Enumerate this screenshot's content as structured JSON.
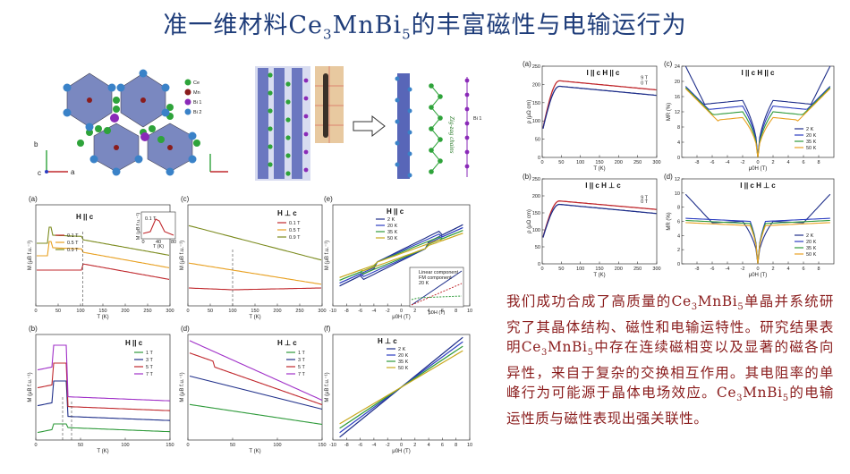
{
  "title": {
    "main": "准一维材料Ce",
    "sub1": "3",
    "mid": "MnBi",
    "sub2": "5",
    "tail": "的丰富磁性与电输运行为"
  },
  "structure": {
    "legend": [
      "Ce",
      "Mn",
      "Bi 1",
      "Bi 2"
    ],
    "axes": [
      "b",
      "c",
      "a"
    ],
    "chain_label": "Zig-zag chains",
    "chain_atom": "Bi 1"
  },
  "colors": {
    "red": "#c0282d",
    "orange": "#e8a020",
    "olive": "#7a8a1c",
    "green": "#2e9a3a",
    "navy": "#1f2f8a",
    "purple": "#a030c8",
    "blue": "#2a3cc0",
    "yellow": "#c8a81c"
  },
  "summary": {
    "p1": "我们成功合成了高质量的Ce",
    "s1": "3",
    "p2": "MnBi",
    "s2": "5",
    "p3": "单晶并系统研究了其晶体结构、磁性和电输运特性。研究结果表明Ce",
    "s3": "3",
    "p4": "MnBi",
    "s4": "5",
    "p5": "中存在连续磁相变以及显著的磁各向异性，来自于复杂的交换相互作用。其电阻率的单峰行为可能源于晶体电场效应。Ce",
    "s5": "3",
    "p6": "MnBi",
    "s6": "5",
    "p7": "的电输运性质与磁性表现出强关联性。"
  },
  "chart_data": [
    {
      "id": "a",
      "type": "line",
      "label": "(a)",
      "heading": "H || c",
      "xlabel": "T (K)",
      "ylabel": "M (μB f.u.⁻¹)",
      "xlim": [
        0,
        300
      ],
      "xticks": [
        0,
        50,
        100,
        150,
        200,
        250,
        300
      ],
      "series": [
        {
          "name": "0.1 T",
          "color": "red"
        },
        {
          "name": "0.5 T",
          "color": "orange"
        },
        {
          "name": "0.9 T",
          "color": "olive"
        }
      ],
      "inset": {
        "xlabel": "T (K)",
        "ylabel": "M (μB f.u.⁻¹)",
        "field": "0.1 T",
        "xticks": [
          0,
          40,
          80
        ]
      }
    },
    {
      "id": "c",
      "type": "line",
      "label": "(c)",
      "heading": "H ⊥ c",
      "xlabel": "T (K)",
      "ylabel": "M (μB f.u.⁻¹)",
      "xlim": [
        0,
        300
      ],
      "xticks": [
        0,
        50,
        100,
        150,
        200,
        250,
        300
      ],
      "series": [
        {
          "name": "0.1 T",
          "color": "red"
        },
        {
          "name": "0.5 T",
          "color": "orange"
        },
        {
          "name": "0.9 T",
          "color": "olive"
        }
      ]
    },
    {
      "id": "e",
      "type": "line",
      "label": "(e)",
      "heading": "H || c",
      "xlabel": "μ0H (T)",
      "ylabel": "M (μB f.u.⁻¹)",
      "xlim": [
        -10,
        10
      ],
      "xticks": [
        -10,
        -8,
        -6,
        -4,
        -2,
        0,
        2,
        4,
        6,
        8,
        10
      ],
      "series": [
        {
          "name": "2 K",
          "color": "navy"
        },
        {
          "name": "20 K",
          "color": "blue"
        },
        {
          "name": "35 K",
          "color": "green"
        },
        {
          "name": "50 K",
          "color": "yellow"
        }
      ],
      "inset": {
        "legend": [
          "Linear component",
          "FM component",
          "20 K"
        ],
        "xlabel": "μ0H (T)"
      }
    },
    {
      "id": "b",
      "type": "line",
      "label": "(b)",
      "heading": "H || c",
      "xlabel": "T (K)",
      "ylabel": "M (μB f.u.⁻¹)",
      "xlim": [
        0,
        150
      ],
      "xticks": [
        0,
        50,
        100,
        150
      ],
      "series": [
        {
          "name": "1 T",
          "color": "green"
        },
        {
          "name": "3 T",
          "color": "navy"
        },
        {
          "name": "5 T",
          "color": "red"
        },
        {
          "name": "7 T",
          "color": "purple"
        }
      ]
    },
    {
      "id": "d",
      "type": "line",
      "label": "(d)",
      "heading": "H ⊥ c",
      "xlabel": "T (K)",
      "ylabel": "M (μB f.u.⁻¹)",
      "xlim": [
        0,
        150
      ],
      "xticks": [
        0,
        50,
        100,
        150
      ],
      "series": [
        {
          "name": "1 T",
          "color": "green"
        },
        {
          "name": "3 T",
          "color": "navy"
        },
        {
          "name": "5 T",
          "color": "red"
        },
        {
          "name": "7 T",
          "color": "purple"
        }
      ]
    },
    {
      "id": "f",
      "type": "line",
      "label": "(f)",
      "heading": "H ⊥ c",
      "xlabel": "μ0H (T)",
      "ylabel": "M (μB f.u.⁻¹)",
      "xlim": [
        -10,
        10
      ],
      "xticks": [
        -10,
        -8,
        -6,
        -4,
        -2,
        0,
        2,
        4,
        6,
        8,
        10
      ],
      "series": [
        {
          "name": "2 K",
          "color": "navy"
        },
        {
          "name": "20 K",
          "color": "blue"
        },
        {
          "name": "35 K",
          "color": "green"
        },
        {
          "name": "50 K",
          "color": "yellow"
        }
      ]
    },
    {
      "id": "ra",
      "type": "line",
      "label": "(a)",
      "heading": "I || c  H || c",
      "xlabel": "T (K)",
      "ylabel": "ρ (μΩ cm)",
      "xlim": [
        0,
        300
      ],
      "ylim": [
        0,
        250
      ],
      "xticks": [
        0,
        50,
        100,
        150,
        200,
        250,
        300
      ],
      "yticks": [
        0,
        50,
        100,
        150,
        200,
        250
      ],
      "series": [
        {
          "name": "9 T",
          "color": "red",
          "peak": 210,
          "end": 185
        },
        {
          "name": "0 T",
          "color": "navy",
          "peak": 195,
          "end": 170
        }
      ]
    },
    {
      "id": "rb",
      "type": "line",
      "label": "(b)",
      "heading": "I || c  H ⊥ c",
      "xlabel": "T (K)",
      "ylabel": "ρ (μΩ cm)",
      "xlim": [
        0,
        300
      ],
      "ylim": [
        0,
        250
      ],
      "xticks": [
        0,
        50,
        100,
        150,
        200,
        250,
        300
      ],
      "yticks": [
        0,
        50,
        100,
        150,
        200,
        250
      ],
      "series": [
        {
          "name": "9 T",
          "color": "red",
          "peak": 185,
          "end": 160
        },
        {
          "name": "0 T",
          "color": "navy",
          "peak": 175,
          "end": 148
        }
      ]
    },
    {
      "id": "rc",
      "type": "line",
      "label": "(c)",
      "heading": "I || c  H || c",
      "xlabel": "μ0H (T)",
      "ylabel": "MR (%)",
      "xlim": [
        -10,
        10
      ],
      "ylim": [
        0,
        24
      ],
      "xticks": [
        -8,
        -6,
        -4,
        -2,
        0,
        2,
        4,
        6,
        8
      ],
      "yticks": [
        0,
        4,
        8,
        12,
        16,
        20,
        24
      ],
      "series": [
        {
          "name": "2 K",
          "color": "navy"
        },
        {
          "name": "20 K",
          "color": "blue"
        },
        {
          "name": "35 K",
          "color": "green"
        },
        {
          "name": "50 K",
          "color": "orange"
        }
      ]
    },
    {
      "id": "rd",
      "type": "line",
      "label": "(d)",
      "heading": "I || c  H ⊥ c",
      "xlabel": "μ0H (T)",
      "ylabel": "MR (%)",
      "xlim": [
        -10,
        10
      ],
      "ylim": [
        0,
        12
      ],
      "xticks": [
        -8,
        -6,
        -4,
        -2,
        0,
        2,
        4,
        6,
        8
      ],
      "yticks": [
        0,
        2,
        4,
        6,
        8,
        10,
        12
      ],
      "series": [
        {
          "name": "2 K",
          "color": "navy"
        },
        {
          "name": "20 K",
          "color": "blue"
        },
        {
          "name": "35 K",
          "color": "green"
        },
        {
          "name": "50 K",
          "color": "orange"
        }
      ]
    }
  ]
}
